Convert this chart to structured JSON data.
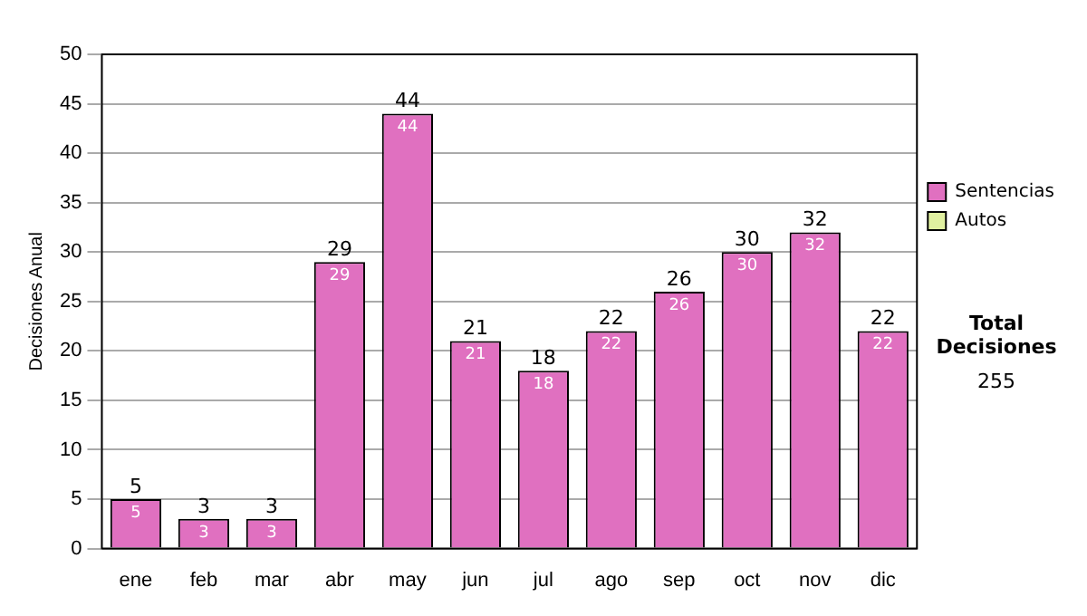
{
  "chart_data": {
    "type": "bar",
    "stacked": true,
    "ylabel": "Decisiones Anual",
    "categories": [
      "ene",
      "feb",
      "mar",
      "abr",
      "may",
      "jun",
      "jul",
      "ago",
      "sep",
      "oct",
      "nov",
      "dic"
    ],
    "series": [
      {
        "name": "Sentencias",
        "color": "#e070c0",
        "values": [
          5,
          3,
          3,
          29,
          44,
          21,
          18,
          22,
          26,
          30,
          32,
          22
        ],
        "value_labels": [
          "5",
          "3",
          "3",
          "29",
          "44",
          "21",
          "18",
          "22",
          "26",
          "30",
          "32",
          "22"
        ]
      },
      {
        "name": "Autos",
        "color": "#e0f0a0",
        "values": [
          0,
          0,
          0,
          0,
          0,
          0,
          0,
          0,
          0,
          0,
          0,
          0
        ]
      }
    ],
    "totals": [
      "5",
      "3",
      "3",
      "29",
      "44",
      "21",
      "18",
      "22",
      "26",
      "30",
      "32",
      "22"
    ],
    "ylim": [
      0,
      50
    ],
    "yticks": [
      0,
      5,
      10,
      15,
      20,
      25,
      30,
      35,
      40,
      45,
      50
    ],
    "grid": "y",
    "legend": "right top",
    "annotations": [
      "Total Decisiones",
      "255"
    ]
  }
}
